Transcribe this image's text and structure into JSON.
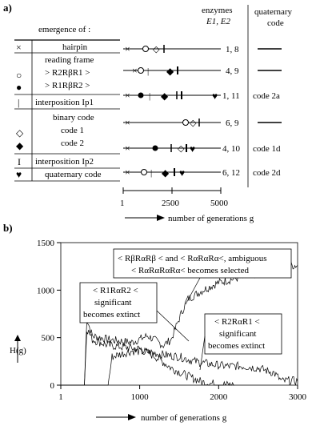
{
  "panel_a": {
    "label": "a)",
    "col_header": "emergence of :",
    "enzymes_header": "enzymes",
    "enzymes_sub": "E1, E2",
    "quat_header_1": "quaternary",
    "quat_header_2": "code",
    "legend": [
      {
        "symbol": "×",
        "text": "hairpin"
      },
      {
        "symbol": "",
        "text": "reading frame"
      },
      {
        "symbol": "○",
        "text": "> R2RβR1 >"
      },
      {
        "symbol": "●",
        "text": "> R1RβR2 >"
      },
      {
        "symbol": "|",
        "text": "interposition Ip1"
      },
      {
        "symbol": "",
        "text": "binary code"
      },
      {
        "symbol": "◇",
        "text": "code 1"
      },
      {
        "symbol": "◆",
        "text": "code 2"
      },
      {
        "symbol": "I",
        "text": "interposition Ip2"
      },
      {
        "symbol": "♥",
        "text": "quaternary code"
      }
    ],
    "rows": [
      {
        "enzymes": "1, 8",
        "code": "—"
      },
      {
        "enzymes": "4, 9",
        "code": "—"
      },
      {
        "enzymes": "1, 11",
        "code": "code 2a"
      },
      {
        "enzymes": "6, 9",
        "code": "—"
      },
      {
        "enzymes": "4, 10",
        "code": "code 1d"
      },
      {
        "enzymes": "6, 12",
        "code": "code 2d"
      }
    ],
    "axis_ticks": [
      "1",
      "2500",
      "5000"
    ],
    "axis_label": "number of generations  g"
  },
  "panel_b": {
    "label": "b)",
    "ylabel": "H(g)",
    "xlabel": "number of generations  g",
    "annotations": [
      "< RβRαRβ < and < RαRαRα<, ambiguous",
      "< RαRαRαRα<  becomes selected",
      "< R1RαR2 <",
      "significant",
      "becomes extinct",
      "< R2RαR1 <",
      "significant",
      "becomes extinct"
    ]
  },
  "chart_data": {
    "type": "line",
    "xlabel": "number of generations  g",
    "ylabel": "H(g)",
    "xlim": [
      1,
      3000
    ],
    "ylim": [
      0,
      1500
    ],
    "x_ticks": [
      "1",
      "1000",
      "2000",
      "3000"
    ],
    "y_ticks": [
      "0",
      "500",
      "1000",
      "1500"
    ],
    "series": [
      {
        "x": [
          1,
          300,
          330,
          400,
          600,
          900,
          1100,
          1300,
          1400,
          1500,
          1600,
          1800,
          2000,
          2200,
          2400,
          2600,
          2800,
          3000
        ],
        "values": [
          0,
          0,
          700,
          520,
          480,
          450,
          520,
          420,
          480,
          700,
          900,
          1000,
          1080,
          1120,
          1150,
          1200,
          1260,
          1260
        ]
      },
      {
        "x": [
          1,
          300,
          330,
          400,
          600,
          800,
          1000,
          1200,
          1400,
          1600,
          1800,
          2000,
          2200
        ],
        "values": [
          0,
          0,
          600,
          480,
          420,
          400,
          380,
          300,
          180,
          100,
          30,
          10,
          0
        ]
      },
      {
        "x": [
          1,
          300,
          600,
          650,
          900,
          1100,
          1300,
          1500,
          1700,
          1900,
          2100,
          2300,
          2500,
          2700,
          2800,
          2900,
          3000
        ],
        "values": [
          0,
          0,
          0,
          300,
          360,
          350,
          320,
          300,
          250,
          220,
          200,
          200,
          180,
          130,
          40,
          50,
          40
        ]
      }
    ]
  }
}
